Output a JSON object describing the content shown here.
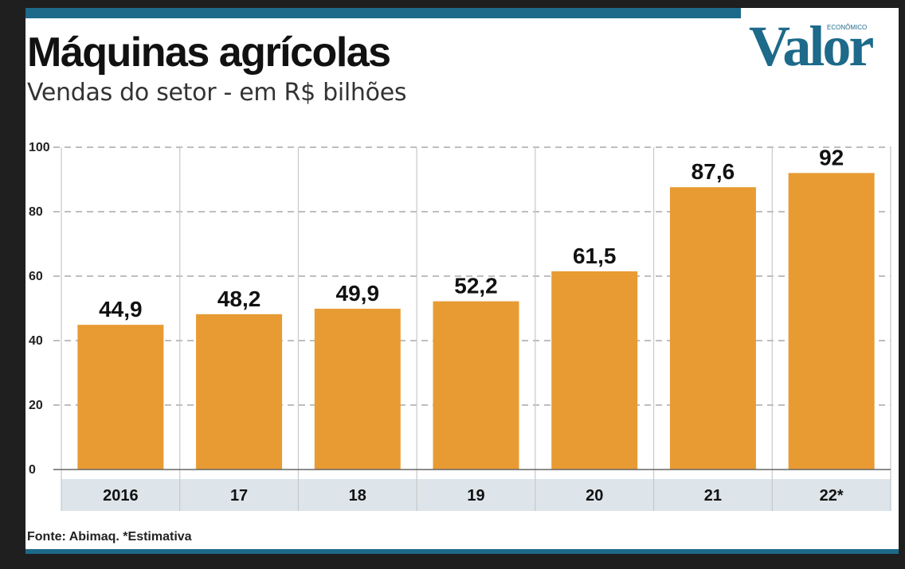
{
  "title": "Máquinas agrícolas",
  "subtitle": "Vendas do setor - em R$ bilhões",
  "source": "Fonte: Abimaq. *Estimativa",
  "logo": {
    "small": "ECONÔMICO",
    "main": "Valor"
  },
  "colors": {
    "bar": "#e89b33",
    "accent": "#1d6a8a",
    "axis_band": "#dde5ea",
    "grid": "#a9a9a9"
  },
  "chart_data": {
    "type": "bar",
    "categories": [
      "2016",
      "17",
      "18",
      "19",
      "20",
      "21",
      "22*"
    ],
    "values": [
      44.9,
      48.2,
      49.9,
      52.2,
      61.5,
      87.6,
      92
    ],
    "value_labels": [
      "44,9",
      "48,2",
      "49,9",
      "52,2",
      "61,5",
      "87,6",
      "92"
    ],
    "title": "Máquinas agrícolas",
    "subtitle": "Vendas do setor - em R$ bilhões",
    "xlabel": "",
    "ylabel": "",
    "ylim": [
      0,
      100
    ],
    "yticks": [
      0,
      20,
      40,
      60,
      80,
      100
    ],
    "grid": true,
    "legend": "none"
  }
}
